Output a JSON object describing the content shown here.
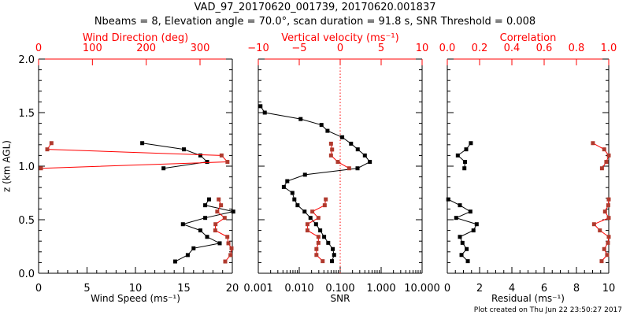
{
  "chart_data": {
    "type": "line",
    "title": "VAD_97_20170620_001739, 20170620.001837",
    "subtitle": "Nbeams = 8, Elevation angle = 70.0°, scan duration = 91.8 s, SNR Threshold = 0.008",
    "footer": "Plot created on Thu Jun 22 23:50:27 2017",
    "ylabel": "z (km AGL)",
    "ylim": [
      0,
      2
    ],
    "yticks": [
      "0.0",
      "0.5",
      "1.0",
      "1.5",
      "2.0"
    ],
    "panels": [
      {
        "bottom_axis": {
          "label": "Wind Speed (ms⁻¹)",
          "range": [
            0,
            20
          ],
          "scale": "linear",
          "ticks": [
            "0",
            "5",
            "10",
            "15",
            "20"
          ]
        },
        "top_axis": {
          "label": "Wind Direction (deg)",
          "range": [
            0,
            360
          ],
          "scale": "linear",
          "ticks": [
            "0",
            "100",
            "200",
            "300"
          ],
          "color": "#ff0000"
        },
        "series": [
          {
            "name": "Wind Speed",
            "axis": "bottom",
            "color": "#000000",
            "segments": [
              {
                "z": [
                  1.215,
                  1.157,
                  1.1,
                  1.04,
                  0.98
                ],
                "v": [
                  10.7,
                  15.0,
                  16.7,
                  17.4,
                  12.9
                ]
              },
              {
                "z": [
                  0.69,
                  0.635,
                  0.576,
                  0.517,
                  0.458,
                  0.4,
                  0.34,
                  0.28,
                  0.233,
                  0.17,
                  0.11
                ],
                "v": [
                  17.6,
                  17.2,
                  20.1,
                  17.2,
                  14.9,
                  16.7,
                  17.4,
                  18.7,
                  16.0,
                  15.4,
                  14.1
                ]
              }
            ]
          },
          {
            "name": "Wind Direction",
            "axis": "top",
            "color": "#ff0000",
            "marker": "#b03a2e",
            "segments": [
              {
                "z": [
                  1.215,
                  1.157,
                  1.1,
                  1.04,
                  0.98
                ],
                "v": [
                  23.9,
                  16.1,
                  340,
                  351,
                  4.4
                ]
              },
              {
                "z": [
                  0.69,
                  0.635,
                  0.576,
                  0.517,
                  0.458,
                  0.4,
                  0.34,
                  0.28,
                  0.233,
                  0.17,
                  0.11
                ],
                "v": [
                  334.7,
                  339,
                  332,
                  345.8,
                  328.8,
                  328.3,
                  350.8,
                  352.7,
                  358.5,
                  356.6,
                  346.8
                ]
              }
            ]
          }
        ]
      },
      {
        "bottom_axis": {
          "label": "SNR",
          "range": [
            0.001,
            10
          ],
          "scale": "log",
          "ticks": [
            "0.001",
            "0.010",
            "0.100",
            "1.000",
            "10.000"
          ]
        },
        "top_axis": {
          "label": "Vertical velocity (ms⁻¹)",
          "range": [
            -10,
            10
          ],
          "scale": "linear",
          "ticks": [
            "−10",
            "−5",
            "0",
            "5",
            "10"
          ],
          "color": "#ff0000"
        },
        "reference_line": {
          "axis": "top",
          "value": 0,
          "color": "#ff0000"
        },
        "series": [
          {
            "name": "SNR",
            "axis": "bottom",
            "color": "#000000",
            "segments": [
              {
                "z": [
                  1.56,
                  1.5,
                  1.44,
                  1.385,
                  1.33,
                  1.27,
                  1.21,
                  1.157,
                  1.1,
                  1.04,
                  0.98,
                  0.92,
                  0.86,
                  0.806,
                  0.75,
                  0.69,
                  0.635,
                  0.576,
                  0.517,
                  0.458,
                  0.4,
                  0.34,
                  0.284,
                  0.226,
                  0.171,
                  0.113
                ],
                "v": [
                  0.00113,
                  0.00144,
                  0.0108,
                  0.0349,
                  0.049,
                  0.112,
                  0.184,
                  0.268,
                  0.4,
                  0.53,
                  0.265,
                  0.0138,
                  0.0051,
                  0.0042,
                  0.0068,
                  0.0076,
                  0.0091,
                  0.0135,
                  0.0188,
                  0.0257,
                  0.0325,
                  0.0405,
                  0.051,
                  0.066,
                  0.071,
                  0.063
                ]
              }
            ]
          },
          {
            "name": "Vertical velocity",
            "axis": "top",
            "color": "#ff0000",
            "marker": "#b03a2e",
            "segments": [
              {
                "z": [
                  1.21,
                  1.155,
                  1.1,
                  1.04,
                  0.98
                ],
                "v": [
                  -1.12,
                  -0.99,
                  -1.12,
                  -0.29,
                  1.09
                ]
              },
              {
                "z": [
                  0.69,
                  0.635,
                  0.576,
                  0.517,
                  0.458,
                  0.4,
                  0.34,
                  0.284,
                  0.226,
                  0.171,
                  0.113
                ],
                "v": [
                  -1.76,
                  -1.89,
                  -3.4,
                  -2.66,
                  -4.0,
                  -4.0,
                  -2.66,
                  -2.66,
                  -2.9,
                  -2.9,
                  -2.14
                ]
              }
            ]
          }
        ]
      },
      {
        "bottom_axis": {
          "label": "Residual (ms⁻¹)",
          "range": [
            0,
            10
          ],
          "scale": "linear",
          "ticks": [
            "0",
            "2",
            "4",
            "6",
            "8",
            "10"
          ]
        },
        "top_axis": {
          "label": "Correlation",
          "range": [
            0,
            1
          ],
          "scale": "linear",
          "ticks": [
            "0.0",
            "0.2",
            "0.4",
            "0.6",
            "0.8",
            "1.0"
          ],
          "color": "#ff0000"
        },
        "series": [
          {
            "name": "Residual",
            "axis": "bottom",
            "color": "#000000",
            "segments": [
              {
                "z": [
                  1.215,
                  1.157,
                  1.1,
                  1.04,
                  0.98
                ],
                "v": [
                  1.46,
                  1.17,
                  0.65,
                  1.1,
                  1.06
                ]
              },
              {
                "z": [
                  0.69,
                  0.635,
                  0.576,
                  0.517,
                  0.458,
                  0.4,
                  0.34,
                  0.284,
                  0.226,
                  0.171,
                  0.113
                ],
                "v": [
                  0.06,
                  0.78,
                  1.43,
                  0.55,
                  1.82,
                  1.62,
                  0.78,
                  0.94,
                  1.2,
                  0.88,
                  1.27
                ]
              }
            ]
          },
          {
            "name": "Correlation",
            "axis": "top",
            "color": "#ff0000",
            "marker": "#b03a2e",
            "segments": [
              {
                "z": [
                  1.215,
                  1.157,
                  1.1,
                  1.04,
                  0.98
                ],
                "v": [
                  0.902,
                  0.972,
                  1.0,
                  0.985,
                  0.958
                ]
              },
              {
                "z": [
                  0.69,
                  0.635,
                  0.576,
                  0.517,
                  0.458,
                  0.4,
                  0.34,
                  0.284,
                  0.226,
                  0.171,
                  0.113
                ],
                "v": [
                  1.0,
                  0.997,
                  0.977,
                  1.0,
                  0.909,
                  0.945,
                  1.0,
                  0.995,
                  0.972,
                  0.99,
                  0.956
                ]
              }
            ]
          }
        ]
      }
    ]
  }
}
